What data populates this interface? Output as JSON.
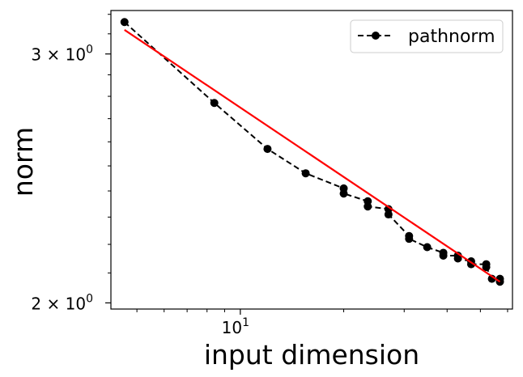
{
  "chart_data": {
    "type": "line",
    "xscale": "log",
    "yscale": "log",
    "xlabel": "input dimension",
    "ylabel": "norm",
    "xlim": [
      4.2,
      62
    ],
    "ylim": [
      1.98,
      3.22
    ],
    "xticks": [
      {
        "value": 10,
        "label": "10",
        "sup": "1"
      }
    ],
    "yticks": [
      {
        "value": 3,
        "label": "3 × 10",
        "sup": "0"
      },
      {
        "value": 2,
        "label": "2 × 10",
        "sup": "0"
      }
    ],
    "legend": {
      "position": "top-right"
    },
    "series": [
      {
        "name": "pathnorm",
        "style": "dashed-with-markers",
        "color": "#000000",
        "x": [
          4.6,
          8.4,
          12,
          15.5,
          20,
          20,
          23.5,
          23.5,
          27,
          27,
          31,
          31,
          35,
          39,
          39,
          43,
          43,
          47,
          47,
          52,
          52,
          54,
          57,
          57
        ],
        "y": [
          3.16,
          2.77,
          2.57,
          2.47,
          2.41,
          2.39,
          2.36,
          2.34,
          2.33,
          2.31,
          2.23,
          2.22,
          2.19,
          2.17,
          2.16,
          2.16,
          2.15,
          2.14,
          2.13,
          2.13,
          2.12,
          2.08,
          2.08,
          2.07
        ]
      },
      {
        "name": "",
        "style": "solid",
        "color": "#ff0000",
        "x": [
          4.6,
          57
        ],
        "y": [
          3.12,
          2.07
        ]
      }
    ]
  }
}
